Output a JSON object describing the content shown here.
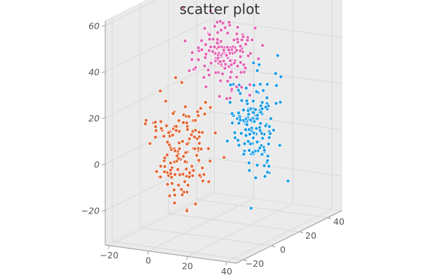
{
  "chart_data": {
    "type": "scatter",
    "title": "scatter plot",
    "xlabel": "",
    "ylabel": "",
    "zlabel": "",
    "xlim": [
      -22,
      45
    ],
    "ylim": [
      -25,
      50
    ],
    "zlim": [
      -35,
      62
    ],
    "x_ticks": [
      "−20",
      "0",
      "20",
      "40"
    ],
    "y_ticks": [
      "−20",
      "0",
      "20",
      "40"
    ],
    "z_ticks": [
      "−20",
      "0",
      "20",
      "40",
      "60"
    ],
    "x_tick_values": [
      -20,
      0,
      20,
      40
    ],
    "y_tick_values": [
      -20,
      0,
      20,
      40
    ],
    "z_tick_values": [
      -20,
      0,
      20,
      40,
      60
    ],
    "grid": true,
    "series": [
      {
        "color": "#e26a3a",
        "center": [
          0,
          0,
          0
        ],
        "spread": [
          6,
          7,
          12
        ],
        "n": 150
      },
      {
        "color": "#e266b4",
        "center": [
          10,
          15,
          40
        ],
        "spread": [
          8,
          6,
          7
        ],
        "n": 150
      },
      {
        "color": "#1f9ee6",
        "center": [
          15,
          30,
          5
        ],
        "spread": [
          5,
          6,
          11
        ],
        "n": 150
      }
    ]
  }
}
